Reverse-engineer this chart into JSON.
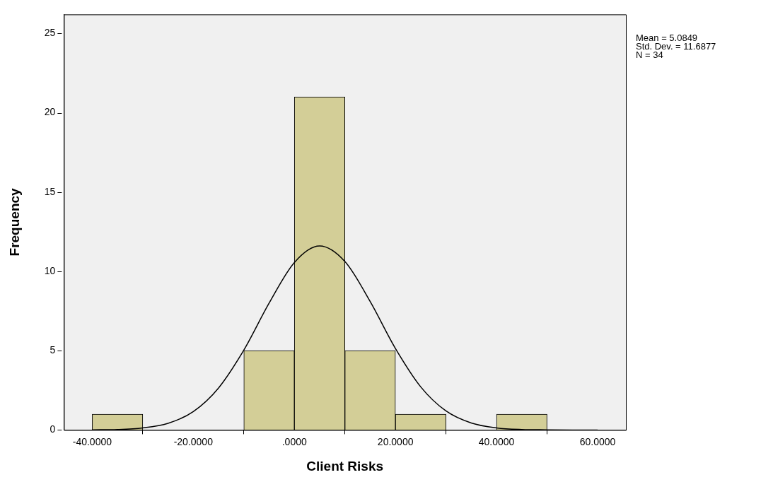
{
  "chart_data": {
    "type": "histogram",
    "xlabel": "Client Risks",
    "ylabel": "Frequency",
    "bins": [
      -40,
      -30,
      -20,
      -10,
      0,
      10,
      20,
      30,
      40,
      50
    ],
    "values": [
      1,
      0,
      0,
      5,
      21,
      5,
      1,
      0,
      1
    ],
    "color": "#d3ce97",
    "series": [
      {
        "type": "line",
        "color": "#000000",
        "x": [
          -40,
          -35,
          -30,
          -25,
          -20,
          -15,
          -10,
          -5,
          0,
          5,
          10,
          15,
          20,
          25,
          30,
          35,
          40,
          45,
          50,
          55,
          60
        ],
        "values": [
          0.01,
          0.03,
          0.13,
          0.42,
          1.16,
          2.65,
          5.04,
          8.0,
          10.56,
          11.6,
          10.62,
          8.1,
          5.14,
          2.72,
          1.2,
          0.44,
          0.13,
          0.03,
          0.01,
          0.0,
          0.0
        ]
      }
    ],
    "xlim": [
      -45.6,
      65.6
    ],
    "xticks": [
      {
        "value": -40,
        "label": "-40.0000"
      },
      {
        "value": -20,
        "label": "-20.0000"
      },
      {
        "value": 0,
        "label": ".0000"
      },
      {
        "value": 20,
        "label": "20.0000"
      },
      {
        "value": 40,
        "label": "40.0000"
      },
      {
        "value": 60,
        "label": "60.0000"
      }
    ],
    "ylim": [
      0,
      26.2
    ],
    "yticks": [
      0,
      5,
      10,
      15,
      20,
      25
    ],
    "grid": false,
    "legend": false,
    "marker": "none",
    "line_style": "solid",
    "annotations": [
      "Mean = 5.0849",
      "Std. Dev. = 11.6877",
      "N = 34"
    ]
  }
}
